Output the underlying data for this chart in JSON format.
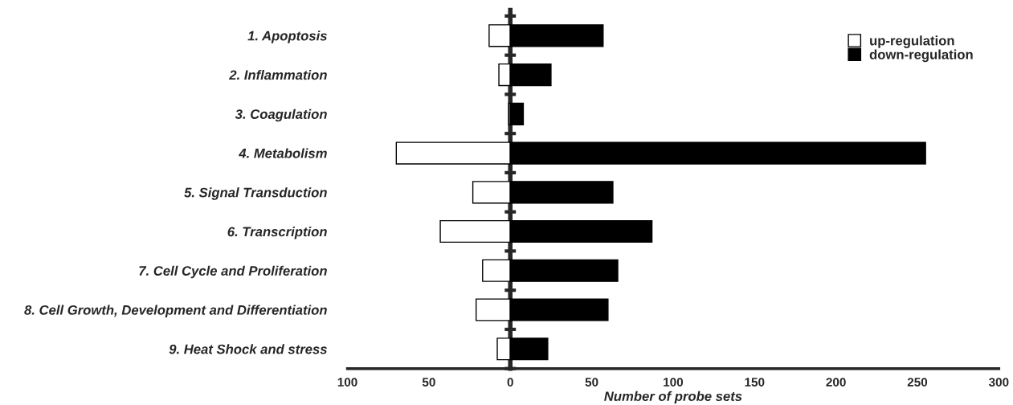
{
  "chart_data": {
    "type": "bar",
    "orientation": "horizontal",
    "xlabel": "Number of probe sets",
    "categories": [
      "1. Apoptosis",
      "2. Inflammation",
      "3. Coagulation",
      "4. Metabolism",
      "5. Signal Transduction",
      "6. Transcription",
      "7. Cell Cycle and Proliferation",
      "8. Cell Growth, Development and Differentiation",
      "9. Heat Shock and stress"
    ],
    "series": [
      {
        "name": "up-regulation",
        "color": "#ffffff",
        "values": [
          -13,
          -7,
          -1,
          -70,
          -23,
          -43,
          -17,
          -21,
          -8
        ]
      },
      {
        "name": "down-regulation",
        "color": "#000000",
        "values": [
          57,
          25,
          8,
          255,
          63,
          87,
          66,
          60,
          23
        ]
      }
    ],
    "xlim": [
      -100,
      300
    ],
    "xticks": [
      {
        "value": -100,
        "label": "100"
      },
      {
        "value": -50,
        "label": "50"
      },
      0,
      50,
      100,
      150,
      200,
      250,
      300
    ],
    "stacked": true,
    "legend": "top right"
  }
}
